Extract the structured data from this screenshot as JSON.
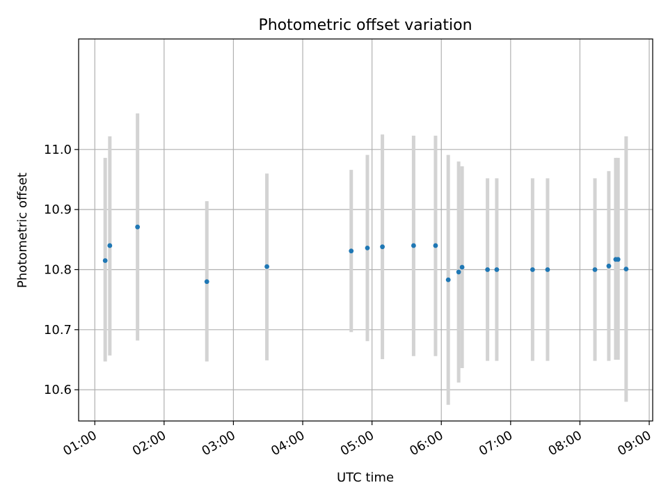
{
  "chart_data": {
    "type": "scatter",
    "title": "Photometric offset variation",
    "xlabel": "UTC time",
    "ylabel": "Photometric offset",
    "x_tick_labels": [
      "01:00",
      "02:00",
      "03:00",
      "04:00",
      "05:00",
      "06:00",
      "07:00",
      "08:00",
      "09:00"
    ],
    "y_tick_labels": [
      "10.6",
      "10.7",
      "10.8",
      "10.9",
      "11.0"
    ],
    "xlim": [
      "00:46",
      "09:03"
    ],
    "ylim": [
      10.548,
      11.184
    ],
    "grid": true,
    "colors": {
      "points": "#1f77b4",
      "errorbars": "#d3d3d3",
      "grid": "#b0b0b0"
    },
    "series": [
      {
        "points": [
          {
            "x": "01:09",
            "y": 10.815,
            "ylow": 10.647,
            "yhigh": 10.986
          },
          {
            "x": "01:13",
            "y": 10.84,
            "ylow": 10.657,
            "yhigh": 11.022
          },
          {
            "x": "01:37",
            "y": 10.871,
            "ylow": 10.682,
            "yhigh": 11.06
          },
          {
            "x": "02:37",
            "y": 10.78,
            "ylow": 10.647,
            "yhigh": 10.914
          },
          {
            "x": "03:29",
            "y": 10.805,
            "ylow": 10.649,
            "yhigh": 10.96
          },
          {
            "x": "04:42",
            "y": 10.831,
            "ylow": 10.696,
            "yhigh": 10.966
          },
          {
            "x": "04:56",
            "y": 10.836,
            "ylow": 10.681,
            "yhigh": 10.991
          },
          {
            "x": "05:09",
            "y": 10.838,
            "ylow": 10.651,
            "yhigh": 11.025
          },
          {
            "x": "05:36",
            "y": 10.84,
            "ylow": 10.656,
            "yhigh": 11.023
          },
          {
            "x": "05:55",
            "y": 10.84,
            "ylow": 10.656,
            "yhigh": 11.023
          },
          {
            "x": "06:06",
            "y": 10.783,
            "ylow": 10.575,
            "yhigh": 10.991
          },
          {
            "x": "06:15",
            "y": 10.796,
            "ylow": 10.612,
            "yhigh": 10.98
          },
          {
            "x": "06:18",
            "y": 10.804,
            "ylow": 10.636,
            "yhigh": 10.972
          },
          {
            "x": "06:40",
            "y": 10.8,
            "ylow": 10.648,
            "yhigh": 10.952
          },
          {
            "x": "06:48",
            "y": 10.8,
            "ylow": 10.648,
            "yhigh": 10.952
          },
          {
            "x": "07:19",
            "y": 10.8,
            "ylow": 10.648,
            "yhigh": 10.952
          },
          {
            "x": "07:32",
            "y": 10.8,
            "ylow": 10.648,
            "yhigh": 10.952
          },
          {
            "x": "08:13",
            "y": 10.8,
            "ylow": 10.648,
            "yhigh": 10.952
          },
          {
            "x": "08:25",
            "y": 10.806,
            "ylow": 10.648,
            "yhigh": 10.964
          },
          {
            "x": "08:31",
            "y": 10.817,
            "ylow": 10.65,
            "yhigh": 10.986
          },
          {
            "x": "08:33",
            "y": 10.817,
            "ylow": 10.65,
            "yhigh": 10.986
          },
          {
            "x": "08:40",
            "y": 10.801,
            "ylow": 10.58,
            "yhigh": 11.022
          }
        ]
      }
    ]
  }
}
